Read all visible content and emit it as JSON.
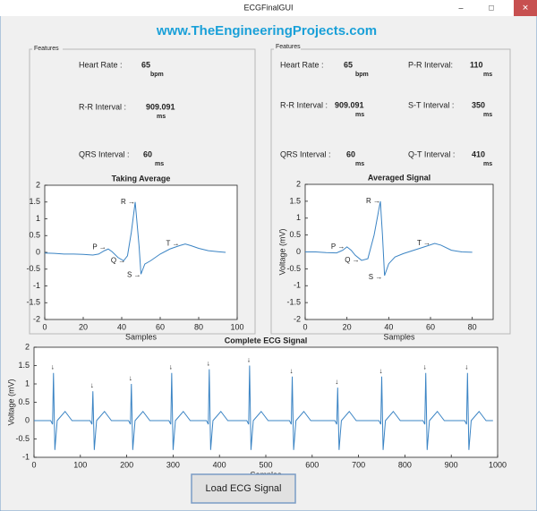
{
  "window": {
    "title": "ECGFinalGUI"
  },
  "header": {
    "title": "www.TheEngineeringProjects.com"
  },
  "left_panel": {
    "title": "Features",
    "fields": [
      {
        "label": "Heart Rate :",
        "value": 65,
        "unit": "bpm"
      },
      {
        "label": "R-R Interval :",
        "value": 909.091,
        "unit": "ms"
      },
      {
        "label": "QRS Interval :",
        "value": 60,
        "unit": "ms"
      }
    ]
  },
  "right_panel": {
    "title": "Features",
    "fields": [
      {
        "label": "Heart Rate :",
        "value": 65,
        "unit": "bpm"
      },
      {
        "label": "R-R Interval :",
        "value": 909.091,
        "unit": "ms"
      },
      {
        "label": "QRS Interval :",
        "value": 60,
        "unit": "ms"
      },
      {
        "label": "P-R Interval:",
        "value": 110,
        "unit": "ms"
      },
      {
        "label": "S-T Interval :",
        "value": 350,
        "unit": "ms"
      },
      {
        "label": "Q-T Interval :",
        "value": 410,
        "unit": "ms"
      }
    ]
  },
  "button": {
    "label": "Load ECG Signal"
  },
  "chart_data": [
    {
      "type": "line",
      "title": "Taking Average",
      "x_label": "Samples",
      "xlim": [
        0,
        100
      ],
      "xticks": [
        0,
        20,
        40,
        60,
        80,
        100
      ],
      "ylim": [
        -2,
        2
      ],
      "yticks": [
        -2,
        -1.5,
        -1,
        -0.5,
        0,
        0.5,
        1,
        1.5,
        2
      ],
      "series": [
        {
          "color": "#3b84c4",
          "x": [
            0,
            5,
            10,
            15,
            20,
            25,
            28,
            31,
            33,
            35,
            38,
            41,
            43,
            45,
            47,
            49,
            50,
            52,
            55,
            60,
            65,
            70,
            73,
            76,
            80,
            85,
            90,
            94
          ],
          "values": [
            -0.02,
            -0.03,
            -0.05,
            -0.05,
            -0.06,
            -0.08,
            -0.05,
            0.05,
            0.1,
            0.02,
            -0.15,
            -0.25,
            -0.1,
            0.6,
            1.5,
            0.2,
            -0.65,
            -0.35,
            -0.25,
            -0.05,
            0.1,
            0.2,
            0.25,
            0.2,
            0.12,
            0.05,
            0.02,
            0.0
          ]
        }
      ],
      "annotations": [
        {
          "text": "P →",
          "x": 32,
          "y": 0.15
        },
        {
          "text": "Q →",
          "x": 42,
          "y": -0.25
        },
        {
          "text": "R →",
          "x": 47,
          "y": 1.5
        },
        {
          "text": "S →",
          "x": 50,
          "y": -0.68
        },
        {
          "text": "T →",
          "x": 70,
          "y": 0.25
        }
      ]
    },
    {
      "type": "line",
      "title": "Averaged Signal",
      "x_label": "Samples",
      "y_label": "Voltage (mV)",
      "xlim": [
        0,
        90
      ],
      "xticks": [
        0,
        20,
        40,
        60,
        80
      ],
      "ylim": [
        -2,
        2
      ],
      "yticks": [
        -2,
        -1.5,
        -1,
        -0.5,
        0,
        0.5,
        1,
        1.5,
        2
      ],
      "series": [
        {
          "color": "#3b84c4",
          "x": [
            0,
            5,
            10,
            15,
            18,
            20,
            22,
            24,
            27,
            30,
            33,
            36,
            37,
            38,
            40,
            43,
            47,
            52,
            57,
            62,
            65,
            70,
            75,
            80
          ],
          "values": [
            0,
            0,
            -0.02,
            -0.03,
            0.05,
            0.15,
            0.05,
            -0.1,
            -0.25,
            -0.2,
            0.5,
            1.5,
            0.5,
            -0.7,
            -0.35,
            -0.15,
            -0.05,
            0.05,
            0.15,
            0.25,
            0.2,
            0.05,
            0.0,
            -0.01
          ]
        }
      ],
      "annotations": [
        {
          "text": "P →",
          "x": 19,
          "y": 0.15
        },
        {
          "text": "Q →",
          "x": 26,
          "y": -0.25
        },
        {
          "text": "R →",
          "x": 36,
          "y": 1.5
        },
        {
          "text": "S →",
          "x": 37,
          "y": -0.75
        },
        {
          "text": "T →",
          "x": 60,
          "y": 0.25
        }
      ]
    },
    {
      "type": "line",
      "title": "Complete ECG Signal",
      "x_label": "Samples",
      "y_label": "Voltage (mV)",
      "xlim": [
        0,
        1000
      ],
      "xticks": [
        0,
        100,
        200,
        300,
        400,
        500,
        600,
        700,
        800,
        900,
        1000
      ],
      "ylim": [
        -1,
        2
      ],
      "yticks": [
        -1,
        -0.5,
        0,
        0.5,
        1,
        1.5,
        2
      ],
      "series": [
        {
          "color": "#3b84c4",
          "x": [
            0,
            36,
            40,
            42,
            45,
            50,
            67,
            82,
            121,
            125,
            127,
            130,
            135,
            152,
            167,
            204,
            208,
            210,
            213,
            218,
            235,
            250,
            291,
            295,
            297,
            300,
            305,
            322,
            337,
            372,
            376,
            378,
            381,
            386,
            403,
            418,
            459,
            463,
            465,
            468,
            473,
            490,
            505,
            551,
            555,
            557,
            560,
            565,
            582,
            597,
            649,
            653,
            655,
            658,
            663,
            680,
            695,
            744,
            748,
            750,
            753,
            758,
            775,
            790,
            839,
            843,
            845,
            848,
            853,
            870,
            885,
            929,
            933,
            935,
            938,
            943,
            960,
            975,
            990
          ],
          "values": [
            0,
            0,
            -0.1,
            1.3,
            -0.8,
            0,
            0.25,
            0,
            0,
            -0.1,
            0.8,
            -0.8,
            0,
            0.25,
            0,
            0,
            -0.1,
            1.0,
            -0.8,
            0,
            0.25,
            0,
            0,
            -0.1,
            1.3,
            -0.8,
            0,
            0.25,
            0,
            0,
            -0.1,
            1.4,
            -0.8,
            0,
            0.25,
            0,
            0,
            -0.1,
            1.5,
            -0.8,
            0,
            0.25,
            0,
            0,
            -0.1,
            1.2,
            -0.8,
            0,
            0.25,
            0,
            0,
            -0.1,
            0.9,
            -0.8,
            0,
            0.25,
            0,
            0,
            -0.1,
            1.2,
            -0.8,
            0,
            0.25,
            0,
            0,
            -0.1,
            1.3,
            -0.8,
            0,
            0.25,
            0,
            0,
            -0.1,
            1.3,
            -0.8,
            0,
            0.25,
            0,
            0
          ]
        }
      ],
      "annotations": [
        {
          "text": "↓",
          "x": 40,
          "y": 1.45
        },
        {
          "text": "↓",
          "x": 125,
          "y": 0.95
        },
        {
          "text": "↓",
          "x": 208,
          "y": 1.15
        },
        {
          "text": "↓",
          "x": 295,
          "y": 1.45
        },
        {
          "text": "↓",
          "x": 376,
          "y": 1.55
        },
        {
          "text": "↓",
          "x": 463,
          "y": 1.65
        },
        {
          "text": "↓",
          "x": 555,
          "y": 1.35
        },
        {
          "text": "↓",
          "x": 653,
          "y": 1.05
        },
        {
          "text": "↓",
          "x": 748,
          "y": 1.35
        },
        {
          "text": "↓",
          "x": 843,
          "y": 1.45
        },
        {
          "text": "↓",
          "x": 933,
          "y": 1.45
        }
      ]
    }
  ]
}
